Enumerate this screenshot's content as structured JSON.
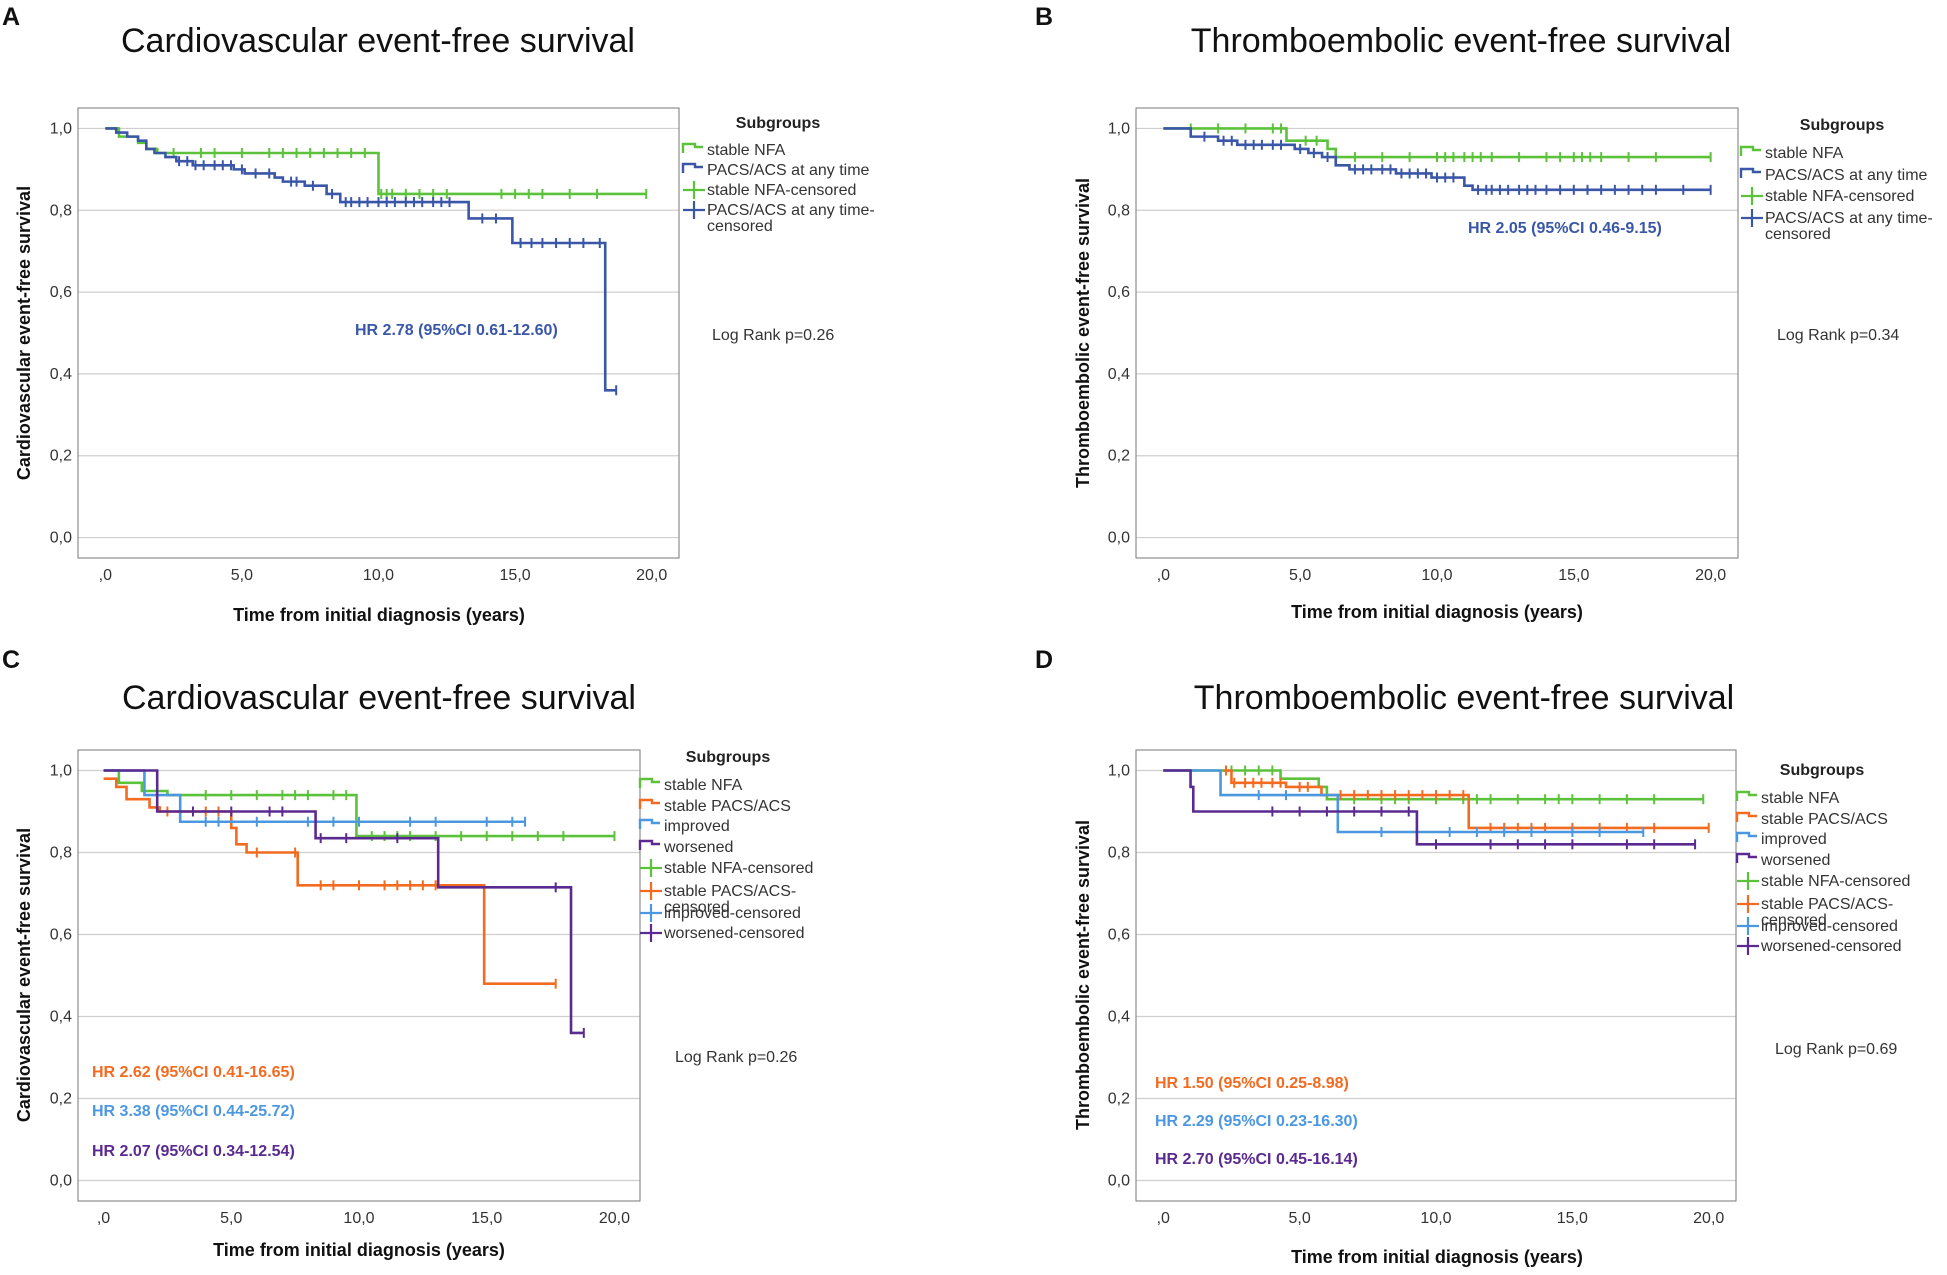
{
  "chart_data": [
    {
      "panel": "A",
      "type": "line",
      "subtype": "kaplan-meier",
      "title": "Cardiovascular event-free survival",
      "xlabel": "Time from initial diagnosis (years)",
      "ylabel": "Cardiovascular event-free survival",
      "xlim": [
        -1,
        21
      ],
      "ylim": [
        -0.05,
        1.05
      ],
      "x_ticks": [
        0,
        5,
        10,
        15,
        20
      ],
      "x_tick_labels": [
        ",0",
        "5,0",
        "10,0",
        "15,0",
        "20,0"
      ],
      "y_ticks": [
        0,
        0.2,
        0.4,
        0.6,
        0.8,
        1.0
      ],
      "y_tick_labels": [
        "0,0",
        "0,2",
        "0,4",
        "0,6",
        "0,8",
        "1,0"
      ],
      "legend_title": "Subgroups",
      "legend_entries": [
        {
          "label": "stable NFA",
          "color": "#5cc23c",
          "kind": "line"
        },
        {
          "label": "PACS/ACS at any time",
          "color": "#3a56a7",
          "kind": "line"
        },
        {
          "label": "stable NFA-censored",
          "color": "#5cc23c",
          "kind": "cross"
        },
        {
          "label": "PACS/ACS at any time-censored",
          "lines": [
            "PACS/ACS at any time-",
            "censored"
          ],
          "color": "#3a56a7",
          "kind": "cross"
        }
      ],
      "log_rank": "Log Rank p=0.26",
      "hr_labels": [
        {
          "text": "HR 2.78 (95%CI 0.61-12.60)",
          "color": "#3a56a7"
        }
      ],
      "series": [
        {
          "name": "stable NFA",
          "color": "#5cc23c",
          "steps": [
            [
              0,
              1.0
            ],
            [
              0.5,
              0.98
            ],
            [
              1.2,
              0.965
            ],
            [
              1.5,
              0.95
            ],
            [
              1.9,
              0.94
            ],
            [
              10,
              0.84
            ],
            [
              19.8,
              0.84
            ]
          ],
          "censored": [
            2.5,
            3.5,
            4,
            5,
            6,
            6.5,
            7,
            7.5,
            8,
            8.5,
            9,
            9.5,
            10.1,
            10.3,
            10.5,
            11,
            11.5,
            12,
            12.5,
            14.5,
            15,
            15.5,
            16,
            17,
            18,
            19.8
          ]
        },
        {
          "name": "PACS/ACS at any time",
          "color": "#3a56a7",
          "steps": [
            [
              0,
              1.0
            ],
            [
              0.4,
              0.99
            ],
            [
              0.8,
              0.98
            ],
            [
              1.2,
              0.97
            ],
            [
              1.5,
              0.95
            ],
            [
              1.8,
              0.94
            ],
            [
              2.2,
              0.93
            ],
            [
              2.6,
              0.92
            ],
            [
              3.2,
              0.91
            ],
            [
              4.7,
              0.9
            ],
            [
              5.1,
              0.89
            ],
            [
              6.2,
              0.88
            ],
            [
              6.5,
              0.87
            ],
            [
              7.3,
              0.86
            ],
            [
              8.1,
              0.84
            ],
            [
              8.6,
              0.82
            ],
            [
              13.3,
              0.78
            ],
            [
              14.9,
              0.72
            ],
            [
              18.3,
              0.36
            ],
            [
              18.7,
              0.36
            ]
          ],
          "censored": [
            2.7,
            3,
            3.3,
            3.6,
            4,
            4.3,
            4.6,
            5,
            5.5,
            6,
            6.8,
            7,
            7.6,
            8.3,
            8.8,
            9,
            9.3,
            9.6,
            10,
            10.3,
            10.6,
            11,
            11.3,
            11.6,
            12,
            12.3,
            12.6,
            13.8,
            14.3,
            15.2,
            15.6,
            16,
            16.5,
            17,
            17.5,
            18.1,
            18.7
          ]
        }
      ]
    },
    {
      "panel": "B",
      "type": "line",
      "subtype": "kaplan-meier",
      "title": "Thromboembolic event-free survival",
      "xlabel": "Time from initial diagnosis (years)",
      "ylabel": "Thromboembolic event-free survival",
      "xlim": [
        -1,
        21
      ],
      "ylim": [
        -0.05,
        1.05
      ],
      "x_ticks": [
        0,
        5,
        10,
        15,
        20
      ],
      "x_tick_labels": [
        ",0",
        "5,0",
        "10,0",
        "15,0",
        "20,0"
      ],
      "y_ticks": [
        0,
        0.2,
        0.4,
        0.6,
        0.8,
        1.0
      ],
      "y_tick_labels": [
        "0,0",
        "0,2",
        "0,4",
        "0,6",
        "0,8",
        "1,0"
      ],
      "legend_title": "Subgroups",
      "legend_entries": [
        {
          "label": "stable NFA",
          "color": "#5cc23c",
          "kind": "line"
        },
        {
          "label": "PACS/ACS at any time",
          "color": "#3a56a7",
          "kind": "line"
        },
        {
          "label": "stable NFA-censored",
          "color": "#5cc23c",
          "kind": "cross"
        },
        {
          "label": "PACS/ACS at any time-censored",
          "lines": [
            "PACS/ACS at any time-",
            "censored"
          ],
          "color": "#3a56a7",
          "kind": "cross"
        }
      ],
      "log_rank": "Log Rank p=0.34",
      "hr_labels": [
        {
          "text": "HR 2.05 (95%CI 0.46-9.15)",
          "color": "#3a56a7"
        }
      ],
      "series": [
        {
          "name": "stable NFA",
          "color": "#5cc23c",
          "steps": [
            [
              0,
              1.0
            ],
            [
              4.5,
              0.97
            ],
            [
              6.0,
              0.95
            ],
            [
              6.3,
              0.93
            ],
            [
              20,
              0.93
            ]
          ],
          "censored": [
            1,
            2,
            3,
            4,
            4.3,
            5.2,
            5.6,
            7,
            8,
            9,
            10,
            10.3,
            10.6,
            11,
            11.3,
            11.6,
            12,
            13,
            14,
            14.5,
            15,
            15.3,
            15.6,
            16,
            17,
            18,
            20
          ]
        },
        {
          "name": "PACS/ACS at any time",
          "color": "#3a56a7",
          "steps": [
            [
              0,
              1.0
            ],
            [
              1,
              0.98
            ],
            [
              2,
              0.97
            ],
            [
              2.7,
              0.96
            ],
            [
              4.8,
              0.95
            ],
            [
              5.3,
              0.94
            ],
            [
              5.8,
              0.93
            ],
            [
              6.3,
              0.91
            ],
            [
              6.8,
              0.9
            ],
            [
              8.5,
              0.89
            ],
            [
              9.8,
              0.88
            ],
            [
              11,
              0.86
            ],
            [
              11.3,
              0.85
            ],
            [
              20,
              0.85
            ]
          ],
          "censored": [
            1.5,
            2.2,
            2.5,
            3,
            3.3,
            3.6,
            4,
            4.3,
            5,
            5.5,
            6,
            7,
            7.3,
            7.6,
            8,
            8.3,
            8.7,
            9,
            9.3,
            9.6,
            10,
            10.3,
            10.6,
            11.5,
            11.8,
            12,
            12.3,
            12.6,
            13,
            13.3,
            13.6,
            14,
            14.5,
            15,
            15.5,
            16,
            16.5,
            17,
            17.5,
            18,
            19,
            20
          ]
        }
      ]
    },
    {
      "panel": "C",
      "type": "line",
      "subtype": "kaplan-meier",
      "title": "Cardiovascular event-free survival",
      "xlabel": "Time from initial diagnosis (years)",
      "ylabel": "Cardiovascular event-free survival",
      "xlim": [
        -1,
        21
      ],
      "ylim": [
        -0.05,
        1.05
      ],
      "x_ticks": [
        0,
        5,
        10,
        15,
        20
      ],
      "x_tick_labels": [
        ",0",
        "5,0",
        "10,0",
        "15,0",
        "20,0"
      ],
      "y_ticks": [
        0,
        0.2,
        0.4,
        0.6,
        0.8,
        1.0
      ],
      "y_tick_labels": [
        "0,0",
        "0,2",
        "0,4",
        "0,6",
        "0,8",
        "1,0"
      ],
      "legend_title": "Subgroups",
      "legend_entries": [
        {
          "label": "stable NFA",
          "color": "#5cc23c",
          "kind": "line"
        },
        {
          "label": "stable PACS/ACS",
          "color": "#f26b21",
          "kind": "line"
        },
        {
          "label": "improved",
          "color": "#4c98e0",
          "kind": "line"
        },
        {
          "label": "worsened",
          "color": "#5a2a91",
          "kind": "line"
        },
        {
          "label": "stable NFA-censored",
          "color": "#5cc23c",
          "kind": "cross"
        },
        {
          "label": "stable PACS/ACS-censored",
          "lines": [
            "stable PACS/ACS-",
            "censored"
          ],
          "color": "#f26b21",
          "kind": "cross"
        },
        {
          "label": "improved-censored",
          "color": "#4c98e0",
          "kind": "cross"
        },
        {
          "label": "worsened-censored",
          "color": "#5a2a91",
          "kind": "cross"
        }
      ],
      "log_rank": "Log Rank p=0.26",
      "hr_labels": [
        {
          "text": "HR 2.62 (95%CI 0.41-16.65)",
          "color": "#f26b21"
        },
        {
          "text": "HR 3.38 (95%CI 0.44-25.72)",
          "color": "#4c98e0"
        },
        {
          "text": "HR 2.07 (95%CI 0.34-12.54)",
          "color": "#5a2a91"
        }
      ],
      "series": [
        {
          "name": "stable NFA",
          "color": "#5cc23c",
          "steps": [
            [
              0,
              1.0
            ],
            [
              0.6,
              0.97
            ],
            [
              1.5,
              0.95
            ],
            [
              2.5,
              0.94
            ],
            [
              9.9,
              0.84
            ],
            [
              20,
              0.84
            ]
          ],
          "censored": [
            4,
            5,
            6,
            7,
            7.5,
            8,
            9,
            9.5,
            10.5,
            11,
            11.5,
            12,
            13,
            14,
            15,
            16,
            17,
            18,
            20
          ]
        },
        {
          "name": "stable PACS/ACS",
          "color": "#f26b21",
          "steps": [
            [
              0,
              0.98
            ],
            [
              0.5,
              0.96
            ],
            [
              0.9,
              0.93
            ],
            [
              1.8,
              0.91
            ],
            [
              2.2,
              0.9
            ],
            [
              5,
              0.86
            ],
            [
              5.2,
              0.82
            ],
            [
              5.6,
              0.8
            ],
            [
              7.6,
              0.72
            ],
            [
              14.9,
              0.48
            ],
            [
              17.7,
              0.48
            ]
          ],
          "censored": [
            2.5,
            3,
            4,
            4.5,
            6,
            7.5,
            8.5,
            9,
            10,
            11,
            11.5,
            12,
            12.5,
            13,
            17.7
          ]
        },
        {
          "name": "improved",
          "color": "#4c98e0",
          "steps": [
            [
              0,
              1.0
            ],
            [
              1.6,
              0.94
            ],
            [
              3.0,
              0.875
            ],
            [
              16.5,
              0.875
            ]
          ],
          "censored": [
            4,
            4.5,
            6,
            8,
            9,
            10,
            12,
            13,
            15,
            16,
            16.5
          ]
        },
        {
          "name": "worsened",
          "color": "#5a2a91",
          "steps": [
            [
              0,
              1.0
            ],
            [
              2.1,
              0.9
            ],
            [
              8.3,
              0.835
            ],
            [
              13.1,
              0.715
            ],
            [
              18.3,
              0.36
            ],
            [
              18.8,
              0.36
            ]
          ],
          "censored": [
            3.5,
            5,
            6.5,
            7,
            8.5,
            9.5,
            11.5,
            17.7,
            18.8
          ]
        }
      ]
    },
    {
      "panel": "D",
      "type": "line",
      "subtype": "kaplan-meier",
      "title": "Thromboembolic event-free survival",
      "xlabel": "Time from initial diagnosis (years)",
      "ylabel": "Thromboembolic event-free survival",
      "xlim": [
        -1,
        21
      ],
      "ylim": [
        -0.05,
        1.05
      ],
      "x_ticks": [
        0,
        5,
        10,
        15,
        20
      ],
      "x_tick_labels": [
        ",0",
        "5,0",
        "10,0",
        "15,0",
        "20,0"
      ],
      "y_ticks": [
        0,
        0.2,
        0.4,
        0.6,
        0.8,
        1.0
      ],
      "y_tick_labels": [
        "0,0",
        "0,2",
        "0,4",
        "0,6",
        "0,8",
        "1,0"
      ],
      "legend_title": "Subgroups",
      "legend_entries": [
        {
          "label": "stable NFA",
          "color": "#5cc23c",
          "kind": "line"
        },
        {
          "label": "stable PACS/ACS",
          "color": "#f26b21",
          "kind": "line"
        },
        {
          "label": "improved",
          "color": "#4c98e0",
          "kind": "line"
        },
        {
          "label": "worsened",
          "color": "#5a2a91",
          "kind": "line"
        },
        {
          "label": "stable NFA-censored",
          "color": "#5cc23c",
          "kind": "cross"
        },
        {
          "label": "stable PACS/ACS-censored",
          "lines": [
            "stable PACS/ACS-",
            "censored"
          ],
          "color": "#f26b21",
          "kind": "cross"
        },
        {
          "label": "improved-censored",
          "color": "#4c98e0",
          "kind": "cross"
        },
        {
          "label": "worsened-censored",
          "color": "#5a2a91",
          "kind": "cross"
        }
      ],
      "log_rank": "Log Rank p=0.69",
      "hr_labels": [
        {
          "text": "HR 1.50 (95%CI 0.25-8.98)",
          "color": "#f26b21"
        },
        {
          "text": "HR 2.29 (95%CI 0.23-16.30)",
          "color": "#4c98e0"
        },
        {
          "text": "HR 2.70 (95%CI 0.45-16.14)",
          "color": "#5a2a91"
        }
      ],
      "series": [
        {
          "name": "stable NFA",
          "color": "#5cc23c",
          "steps": [
            [
              0,
              1.0
            ],
            [
              4.3,
              0.98
            ],
            [
              5.7,
              0.96
            ],
            [
              6.0,
              0.93
            ],
            [
              19.8,
              0.93
            ]
          ],
          "censored": [
            2.5,
            3,
            3.5,
            4,
            7,
            8,
            8.5,
            9,
            10,
            11,
            11.5,
            12,
            13,
            14,
            14.5,
            15,
            16,
            17,
            18,
            19.8
          ]
        },
        {
          "name": "stable PACS/ACS",
          "color": "#f26b21",
          "steps": [
            [
              2.2,
              1.0
            ],
            [
              2.5,
              0.97
            ],
            [
              4.5,
              0.96
            ],
            [
              5.8,
              0.94
            ],
            [
              11.2,
              0.86
            ],
            [
              20,
              0.86
            ]
          ],
          "censored": [
            2.3,
            2.6,
            3,
            3.3,
            3.6,
            4,
            4.3,
            5,
            5.3,
            6.5,
            7,
            7.5,
            8,
            8.5,
            9,
            9.5,
            10,
            10.5,
            11,
            12,
            12.5,
            13,
            13.5,
            14,
            15,
            16,
            17,
            18,
            20
          ]
        },
        {
          "name": "improved",
          "color": "#4c98e0",
          "steps": [
            [
              0,
              1.0
            ],
            [
              2.1,
              0.94
            ],
            [
              6.4,
              0.85
            ],
            [
              17.6,
              0.85
            ]
          ],
          "censored": [
            3.5,
            4.5,
            8,
            10.5,
            11.5,
            12.5,
            13.5,
            15,
            16,
            17.6
          ]
        },
        {
          "name": "worsened",
          "color": "#5a2a91",
          "steps": [
            [
              0,
              1.0
            ],
            [
              1.0,
              0.96
            ],
            [
              1.1,
              0.9
            ],
            [
              9.3,
              0.82
            ],
            [
              19.5,
              0.82
            ]
          ],
          "censored": [
            4,
            5,
            6,
            7,
            8,
            9,
            10,
            12,
            13,
            14,
            15,
            17,
            18,
            19.5
          ]
        }
      ]
    }
  ]
}
